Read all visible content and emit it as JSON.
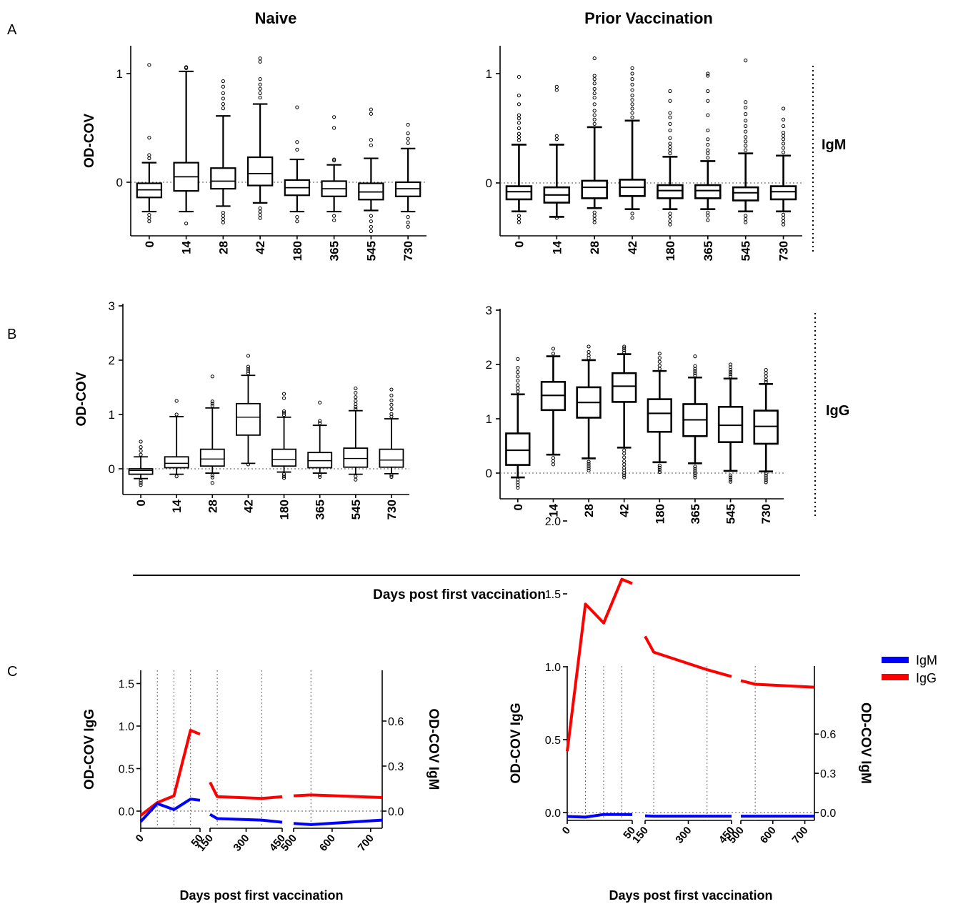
{
  "figure": {
    "col_titles": [
      "Naive",
      "Prior Vaccination"
    ],
    "row_labels": [
      "A",
      "B",
      "C"
    ],
    "side_labels": [
      "IgM",
      "IgG"
    ],
    "shared_xlabel": "Days post first vaccination"
  },
  "chart_data": [
    {
      "id": "A-naive",
      "type": "box",
      "panel": "A",
      "group": "Naive",
      "isotype": "IgM",
      "ylabel": "OD-COV",
      "ylim": [
        -0.5,
        1.25
      ],
      "yticks": [
        0,
        1
      ],
      "categories": [
        "0",
        "14",
        "28",
        "42",
        "180",
        "365",
        "545",
        "730"
      ],
      "boxes": [
        {
          "min": -0.27,
          "q1": -0.14,
          "median": -0.07,
          "q3": -0.01,
          "max": 0.18,
          "outliers": [
            -0.3,
            -0.33,
            -0.36,
            0.22,
            0.25,
            0.41,
            1.08
          ]
        },
        {
          "min": -0.27,
          "q1": -0.08,
          "median": 0.05,
          "q3": 0.18,
          "max": 1.02,
          "outliers": [
            -0.38,
            1.05,
            1.06
          ]
        },
        {
          "min": -0.22,
          "q1": -0.06,
          "median": 0.01,
          "q3": 0.13,
          "max": 0.61,
          "outliers": [
            -0.28,
            -0.31,
            -0.34,
            -0.37,
            0.68,
            0.72,
            0.77,
            0.82,
            0.88,
            0.93
          ]
        },
        {
          "min": -0.19,
          "q1": -0.03,
          "median": 0.08,
          "q3": 0.23,
          "max": 0.72,
          "outliers": [
            -0.24,
            -0.27,
            -0.3,
            -0.33,
            0.78,
            0.82,
            0.86,
            0.9,
            0.95,
            1.11,
            1.14
          ]
        },
        {
          "min": -0.27,
          "q1": -0.12,
          "median": -0.05,
          "q3": 0.02,
          "max": 0.21,
          "outliers": [
            -0.32,
            -0.36,
            0.3,
            0.37,
            0.69
          ]
        },
        {
          "min": -0.27,
          "q1": -0.13,
          "median": -0.06,
          "q3": 0.01,
          "max": 0.16,
          "outliers": [
            -0.31,
            -0.35,
            0.2,
            0.21,
            0.5,
            0.6
          ]
        },
        {
          "min": -0.26,
          "q1": -0.16,
          "median": -0.09,
          "q3": -0.01,
          "max": 0.22,
          "outliers": [
            -0.31,
            -0.36,
            -0.41,
            -0.45,
            0.34,
            0.39,
            0.63,
            0.67
          ]
        },
        {
          "min": -0.27,
          "q1": -0.13,
          "median": -0.06,
          "q3": 0.0,
          "max": 0.31,
          "outliers": [
            -0.32,
            -0.37,
            -0.41,
            0.36,
            0.4,
            0.45,
            0.53
          ]
        }
      ]
    },
    {
      "id": "A-prior",
      "type": "box",
      "panel": "A",
      "group": "Prior Vaccination",
      "isotype": "IgM",
      "ylabel": "",
      "ylim": [
        -0.5,
        1.25
      ],
      "yticks": [
        0,
        1
      ],
      "categories": [
        "0",
        "14",
        "28",
        "42",
        "180",
        "365",
        "545",
        "730"
      ],
      "boxes": [
        {
          "min": -0.26,
          "q1": -0.15,
          "median": -0.08,
          "q3": -0.03,
          "max": 0.35,
          "outliers": [
            -0.3,
            -0.33,
            -0.36,
            0.39,
            0.42,
            0.45,
            0.5,
            0.55,
            0.59,
            0.62,
            0.72,
            0.8,
            0.97
          ]
        },
        {
          "min": -0.31,
          "q1": -0.18,
          "median": -0.11,
          "q3": -0.04,
          "max": 0.35,
          "outliers": [
            -0.32,
            0.4,
            0.43,
            0.85,
            0.88
          ]
        },
        {
          "min": -0.23,
          "q1": -0.14,
          "median": -0.04,
          "q3": 0.02,
          "max": 0.51,
          "outliers": [
            -0.27,
            -0.3,
            -0.33,
            -0.36,
            0.54,
            0.58,
            0.62,
            0.66,
            0.72,
            0.78,
            0.82,
            0.86,
            0.91,
            0.95,
            0.98,
            1.14
          ]
        },
        {
          "min": -0.24,
          "q1": -0.12,
          "median": -0.04,
          "q3": 0.03,
          "max": 0.57,
          "outliers": [
            -0.28,
            -0.32,
            0.6,
            0.64,
            0.68,
            0.72,
            0.76,
            0.8,
            0.85,
            0.9,
            0.95,
            1.0,
            1.05
          ]
        },
        {
          "min": -0.24,
          "q1": -0.14,
          "median": -0.07,
          "q3": -0.02,
          "max": 0.24,
          "outliers": [
            -0.28,
            -0.31,
            -0.35,
            -0.38,
            0.27,
            0.3,
            0.33,
            0.36,
            0.41,
            0.48,
            0.54,
            0.6,
            0.64,
            0.75,
            0.84
          ]
        },
        {
          "min": -0.24,
          "q1": -0.14,
          "median": -0.07,
          "q3": -0.02,
          "max": 0.2,
          "outliers": [
            -0.27,
            -0.3,
            -0.34,
            0.23,
            0.27,
            0.3,
            0.35,
            0.4,
            0.48,
            0.62,
            0.75,
            0.84,
            0.98,
            1.0
          ]
        },
        {
          "min": -0.26,
          "q1": -0.16,
          "median": -0.09,
          "q3": -0.04,
          "max": 0.27,
          "outliers": [
            -0.3,
            -0.33,
            -0.36,
            0.3,
            0.34,
            0.38,
            0.42,
            0.47,
            0.52,
            0.57,
            0.63,
            0.69,
            0.74,
            1.12
          ]
        },
        {
          "min": -0.26,
          "q1": -0.15,
          "median": -0.08,
          "q3": -0.03,
          "max": 0.25,
          "outliers": [
            -0.29,
            -0.32,
            -0.35,
            -0.38,
            0.28,
            0.32,
            0.36,
            0.4,
            0.43,
            0.46,
            0.52,
            0.58,
            0.68
          ]
        }
      ]
    },
    {
      "id": "B-naive",
      "type": "box",
      "panel": "B",
      "group": "Naive",
      "isotype": "IgG",
      "ylabel": "OD-COV",
      "ylim": [
        -0.5,
        3
      ],
      "yticks": [
        0,
        1,
        2,
        3
      ],
      "categories": [
        "0",
        "14",
        "28",
        "42",
        "180",
        "365",
        "545",
        "730"
      ],
      "boxes": [
        {
          "min": -0.18,
          "q1": -0.1,
          "median": -0.03,
          "q3": 0.0,
          "max": 0.22,
          "outliers": [
            -0.22,
            -0.26,
            -0.3,
            0.26,
            0.33,
            0.4,
            0.5
          ]
        },
        {
          "min": -0.1,
          "q1": 0.02,
          "median": 0.1,
          "q3": 0.22,
          "max": 0.96,
          "outliers": [
            -0.14,
            1.0,
            1.25
          ]
        },
        {
          "min": -0.08,
          "q1": 0.05,
          "median": 0.18,
          "q3": 0.36,
          "max": 1.12,
          "outliers": [
            -0.12,
            -0.16,
            -0.26,
            1.16,
            1.2,
            1.24,
            1.7
          ]
        },
        {
          "min": 0.1,
          "q1": 0.62,
          "median": 0.95,
          "q3": 1.2,
          "max": 1.72,
          "outliers": [
            0.08,
            1.76,
            1.8,
            1.84,
            1.88,
            2.08
          ]
        },
        {
          "min": -0.06,
          "q1": 0.05,
          "median": 0.17,
          "q3": 0.36,
          "max": 0.95,
          "outliers": [
            -0.1,
            -0.14,
            -0.17,
            0.99,
            1.03,
            1.06,
            1.3,
            1.38
          ]
        },
        {
          "min": -0.08,
          "q1": 0.02,
          "median": 0.15,
          "q3": 0.3,
          "max": 0.8,
          "outliers": [
            -0.11,
            -0.15,
            0.84,
            0.88,
            1.22
          ]
        },
        {
          "min": -0.1,
          "q1": 0.03,
          "median": 0.19,
          "q3": 0.38,
          "max": 1.07,
          "outliers": [
            -0.14,
            -0.2,
            1.1,
            1.14,
            1.19,
            1.25,
            1.32,
            1.4,
            1.48
          ]
        },
        {
          "min": -0.09,
          "q1": 0.03,
          "median": 0.16,
          "q3": 0.36,
          "max": 0.92,
          "outliers": [
            -0.12,
            -0.15,
            0.96,
            1.01,
            1.1,
            1.18,
            1.26,
            1.35,
            1.46
          ]
        }
      ]
    },
    {
      "id": "B-prior",
      "type": "box",
      "panel": "B",
      "group": "Prior Vaccination",
      "isotype": "IgG",
      "ylabel": "",
      "ylim": [
        -0.5,
        3
      ],
      "yticks": [
        0,
        1,
        2,
        3
      ],
      "categories": [
        "0",
        "14",
        "28",
        "42",
        "180",
        "365",
        "545",
        "730"
      ],
      "boxes": [
        {
          "min": -0.08,
          "q1": 0.15,
          "median": 0.42,
          "q3": 0.73,
          "max": 1.45,
          "outliers": [
            -0.12,
            -0.17,
            -0.22,
            -0.27,
            1.5,
            1.56,
            1.62,
            1.7,
            1.78,
            1.86,
            1.94,
            2.1
          ]
        },
        {
          "min": 0.34,
          "q1": 1.16,
          "median": 1.43,
          "q3": 1.68,
          "max": 2.15,
          "outliers": [
            0.16,
            0.22,
            0.28,
            2.2,
            2.29
          ]
        },
        {
          "min": 0.27,
          "q1": 1.02,
          "median": 1.3,
          "q3": 1.58,
          "max": 2.08,
          "outliers": [
            0.05,
            0.09,
            0.13,
            0.17,
            0.21,
            2.12,
            2.17,
            2.23,
            2.33
          ]
        },
        {
          "min": 0.47,
          "q1": 1.31,
          "median": 1.6,
          "q3": 1.84,
          "max": 2.19,
          "outliers": [
            -0.08,
            -0.04,
            0.0,
            0.05,
            0.1,
            0.16,
            0.22,
            0.29,
            0.36,
            0.42,
            2.22,
            2.26,
            2.3,
            2.33
          ]
        },
        {
          "min": 0.2,
          "q1": 0.76,
          "median": 1.1,
          "q3": 1.36,
          "max": 1.88,
          "outliers": [
            0.02,
            0.06,
            0.1,
            0.14,
            1.92,
            1.98,
            2.05,
            2.12,
            2.2
          ]
        },
        {
          "min": 0.18,
          "q1": 0.68,
          "median": 0.98,
          "q3": 1.27,
          "max": 1.76,
          "outliers": [
            -0.08,
            -0.04,
            0.0,
            0.04,
            0.08,
            0.12,
            1.8,
            1.84,
            1.88,
            1.92,
            1.97,
            2.15
          ]
        },
        {
          "min": 0.04,
          "q1": 0.57,
          "median": 0.88,
          "q3": 1.22,
          "max": 1.74,
          "outliers": [
            -0.16,
            -0.12,
            -0.08,
            -0.04,
            1.78,
            1.82,
            1.86,
            1.9,
            1.95,
            2.0
          ]
        },
        {
          "min": 0.03,
          "q1": 0.54,
          "median": 0.86,
          "q3": 1.15,
          "max": 1.64,
          "outliers": [
            -0.17,
            -0.13,
            -0.09,
            -0.05,
            -0.01,
            1.68,
            1.72,
            1.78,
            1.84,
            1.9
          ]
        }
      ]
    },
    {
      "id": "C-naive",
      "type": "line",
      "panel": "C",
      "group": "Naive",
      "xlabel": "Days post first vaccination",
      "ylabel": "OD-COV IgG",
      "ylabel_right": "OD-COV IgM",
      "ylim": [
        -0.2,
        1.5
      ],
      "yticks": [
        "0.0",
        "0.5",
        "1.0",
        "1.5"
      ],
      "ylim_right": [
        -0.08,
        0.6
      ],
      "yticks_right": [
        "0.0",
        "0.3",
        "0.6"
      ],
      "x_segments": [
        [
          0,
          50
        ],
        [
          150,
          450
        ],
        [
          500,
          730
        ]
      ],
      "xticks": [
        "0",
        "50",
        "150",
        "300",
        "450",
        "500",
        "600",
        "700"
      ],
      "vlines": [
        14,
        28,
        42,
        180,
        365,
        545
      ],
      "series": [
        {
          "name": "IgG",
          "color": "#ff0000",
          "axis": "left",
          "x": [
            0,
            14,
            28,
            42,
            180,
            365,
            545,
            730
          ],
          "y": [
            -0.05,
            0.1,
            0.18,
            0.95,
            0.17,
            0.15,
            0.19,
            0.16
          ]
        },
        {
          "name": "IgM",
          "color": "#0000ff",
          "axis": "right",
          "x": [
            0,
            14,
            28,
            42,
            180,
            365,
            545,
            730
          ],
          "y": [
            -0.07,
            0.05,
            0.01,
            0.08,
            -0.05,
            -0.06,
            -0.09,
            -0.06
          ]
        }
      ]
    },
    {
      "id": "C-prior",
      "type": "line",
      "panel": "C",
      "group": "Prior Vaccination",
      "xlabel": "Days post first vaccination",
      "ylabel": "OD-COV IgG",
      "ylabel_right": "OD-COV IgM",
      "ylim": [
        -0.15,
        2.0
      ],
      "yticks": [
        "0.0",
        "0.5",
        "1.0",
        "1.5",
        "2.0"
      ],
      "ylim_right": [
        -0.045,
        0.6
      ],
      "yticks_right": [
        "0.0",
        "0.3",
        "0.6"
      ],
      "x_segments": [
        [
          0,
          50
        ],
        [
          150,
          450
        ],
        [
          500,
          730
        ]
      ],
      "xticks": [
        "0",
        "50",
        "150",
        "300",
        "450",
        "500",
        "600",
        "700"
      ],
      "vlines": [
        14,
        28,
        42,
        180,
        365,
        545
      ],
      "series": [
        {
          "name": "IgG",
          "color": "#ff0000",
          "axis": "left",
          "x": [
            0,
            14,
            28,
            42,
            180,
            365,
            545,
            730
          ],
          "y": [
            0.42,
            1.43,
            1.3,
            1.6,
            1.1,
            0.98,
            0.88,
            0.86
          ]
        },
        {
          "name": "IgM",
          "color": "#0000ff",
          "axis": "right",
          "x": [
            0,
            14,
            28,
            42,
            180,
            365,
            545,
            730
          ],
          "y": [
            -0.03,
            -0.035,
            -0.015,
            -0.015,
            -0.028,
            -0.028,
            -0.028,
            -0.028
          ]
        }
      ]
    }
  ],
  "legend": {
    "placement": "top-right",
    "entries": [
      {
        "label": "IgM",
        "color": "#0000ff"
      },
      {
        "label": "IgG",
        "color": "#ff0000"
      }
    ]
  }
}
